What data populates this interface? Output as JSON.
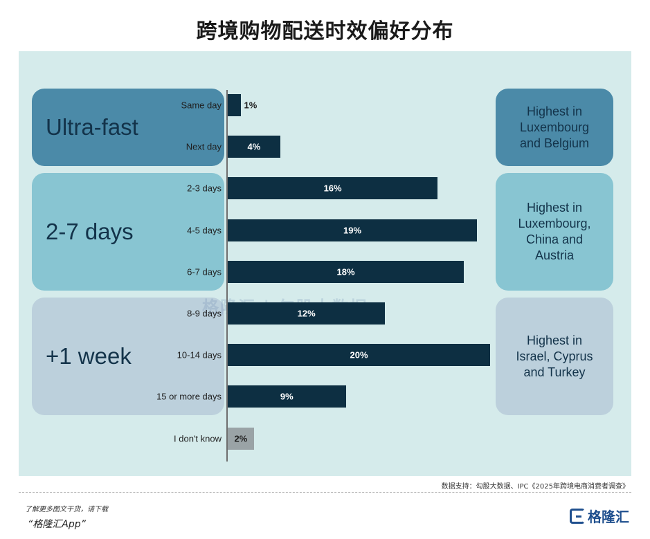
{
  "title": "跨境购物配送时效偏好分布",
  "groups": [
    {
      "label": "Ultra-fast",
      "note": "Highest in\nLuxembourg\nand Belgium"
    },
    {
      "label": "2-7 days",
      "note": "Highest in\nLuxembourg,\nChina and\nAustria"
    },
    {
      "label": "+1 week",
      "note": "Highest in\nIsrael, Cyprus\nand Turkey"
    }
  ],
  "chart_data": {
    "type": "bar",
    "orientation": "horizontal",
    "title": "跨境购物配送时效偏好分布",
    "categories": [
      "Same day",
      "Next day",
      "2-3 days",
      "4-5 days",
      "6-7 days",
      "8-9 days",
      "10-14 days",
      "15 or more days",
      "I don't know"
    ],
    "values": [
      1,
      4,
      16,
      19,
      18,
      12,
      20,
      9,
      2
    ],
    "value_labels": [
      "1%",
      "4%",
      "16%",
      "19%",
      "18%",
      "12%",
      "20%",
      "9%",
      "2%"
    ],
    "unit": "%",
    "xlim": [
      0,
      20
    ],
    "grid": false,
    "bar_color": "#0d2f42",
    "other_bar_color": "#9aa3a6"
  },
  "watermark": "格隆汇 | 勾股大数据",
  "source": "数据支持：勾股大数据、IPC《2025年跨境电商消费者调查》",
  "footer": {
    "line1": "了解更多图文干货，请下载",
    "line2": "“格隆汇App”"
  },
  "logo_text": "格隆汇",
  "colors": {
    "panel": "#d5ebeb",
    "ultra": "#4b8aa8",
    "mid": "#88c5d2",
    "week": "#bcd0dc",
    "bar": "#0d2f42"
  }
}
